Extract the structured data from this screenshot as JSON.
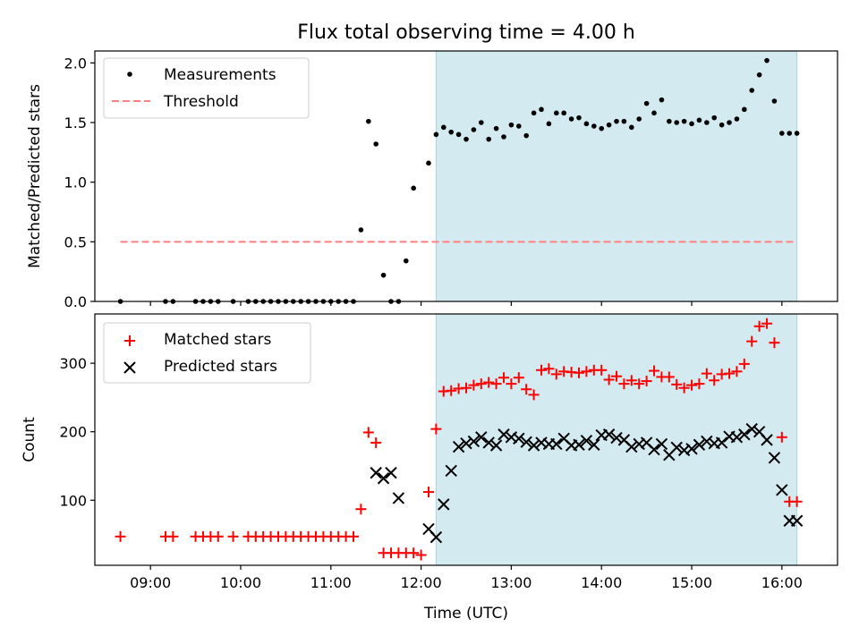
{
  "figure": {
    "title": "Flux total observing time = 4.00 h"
  },
  "chart_data": [
    {
      "type": "scatter",
      "ylabel": "Matched/Predicted stars",
      "xlabel": "",
      "ylim": [
        0,
        2.1
      ],
      "xlim": [
        "08:23",
        "16:37"
      ],
      "yticks": [
        0.0,
        0.5,
        1.0,
        1.5,
        2.0
      ],
      "ytick_labels": [
        "0.0",
        "0.5",
        "1.0",
        "1.5",
        "2.0"
      ],
      "shaded_span": {
        "from": "12:10",
        "to": "16:10",
        "color": "#d3eaf0"
      },
      "grid": false,
      "legend_position": "upper-left",
      "series": [
        {
          "name": "Measurements",
          "style": "dot",
          "color": "#000000",
          "x": [
            "08:40",
            "09:10",
            "09:15",
            "09:30",
            "09:35",
            "09:40",
            "09:45",
            "09:55",
            "10:05",
            "10:10",
            "10:15",
            "10:20",
            "10:25",
            "10:30",
            "10:35",
            "10:40",
            "10:45",
            "10:50",
            "10:55",
            "11:00",
            "11:05",
            "11:10",
            "11:15",
            "11:20",
            "11:25",
            "11:30",
            "11:35",
            "11:40",
            "11:45",
            "11:50",
            "11:55",
            "12:05",
            "12:10",
            "12:15",
            "12:20",
            "12:25",
            "12:30",
            "12:35",
            "12:40",
            "12:45",
            "12:50",
            "12:55",
            "13:00",
            "13:05",
            "13:10",
            "13:15",
            "13:20",
            "13:25",
            "13:30",
            "13:35",
            "13:40",
            "13:45",
            "13:50",
            "13:55",
            "14:00",
            "14:05",
            "14:10",
            "14:15",
            "14:20",
            "14:25",
            "14:30",
            "14:35",
            "14:40",
            "14:45",
            "14:50",
            "14:55",
            "15:00",
            "15:05",
            "15:10",
            "15:15",
            "15:20",
            "15:25",
            "15:30",
            "15:35",
            "15:40",
            "15:45",
            "15:50",
            "15:55",
            "16:00",
            "16:05",
            "16:10"
          ],
          "y": [
            0,
            0,
            0,
            0,
            0,
            0,
            0,
            0,
            0,
            0,
            0,
            0,
            0,
            0,
            0,
            0,
            0,
            0,
            0,
            0,
            0,
            0,
            0,
            0.6,
            1.51,
            1.32,
            0.22,
            0,
            0,
            0.34,
            0.95,
            1.16,
            1.4,
            1.46,
            1.42,
            1.4,
            1.36,
            1.44,
            1.5,
            1.36,
            1.45,
            1.38,
            1.48,
            1.47,
            1.39,
            1.58,
            1.61,
            1.49,
            1.58,
            1.58,
            1.53,
            1.54,
            1.49,
            1.47,
            1.45,
            1.48,
            1.51,
            1.51,
            1.46,
            1.53,
            1.66,
            1.58,
            1.69,
            1.51,
            1.5,
            1.51,
            1.49,
            1.52,
            1.5,
            1.54,
            1.48,
            1.5,
            1.53,
            1.61,
            1.77,
            1.9,
            2.02,
            1.68,
            1.41,
            1.41,
            1.41
          ]
        },
        {
          "name": "Threshold",
          "style": "dashed-line",
          "color": "#ff7f7f",
          "x": [
            "08:40",
            "16:10"
          ],
          "y": [
            0.5,
            0.5
          ]
        }
      ]
    },
    {
      "type": "scatter",
      "ylabel": "Count",
      "xlabel": "Time (UTC)",
      "ylim": [
        5,
        372
      ],
      "xlim": [
        "08:23",
        "16:37"
      ],
      "yticks": [
        100,
        200,
        300
      ],
      "ytick_labels": [
        "100",
        "200",
        "300"
      ],
      "xticks": [
        "09:00",
        "10:00",
        "11:00",
        "12:00",
        "13:00",
        "14:00",
        "15:00",
        "16:00"
      ],
      "shaded_span": {
        "from": "12:10",
        "to": "16:10",
        "color": "#d3eaf0"
      },
      "grid": false,
      "legend_position": "upper-left",
      "series": [
        {
          "name": "Matched stars",
          "style": "plus",
          "color": "#ff0000",
          "x": [
            "08:40",
            "09:10",
            "09:15",
            "09:30",
            "09:35",
            "09:40",
            "09:45",
            "09:55",
            "10:05",
            "10:10",
            "10:15",
            "10:20",
            "10:25",
            "10:30",
            "10:35",
            "10:40",
            "10:45",
            "10:50",
            "10:55",
            "11:00",
            "11:05",
            "11:10",
            "11:15",
            "11:20",
            "11:25",
            "11:30",
            "11:35",
            "11:40",
            "11:45",
            "11:50",
            "11:55",
            "12:00",
            "12:05",
            "12:10",
            "12:15",
            "12:20",
            "12:25",
            "12:30",
            "12:35",
            "12:40",
            "12:45",
            "12:50",
            "12:55",
            "13:00",
            "13:05",
            "13:10",
            "13:15",
            "13:20",
            "13:25",
            "13:30",
            "13:35",
            "13:40",
            "13:45",
            "13:50",
            "13:55",
            "14:00",
            "14:05",
            "14:10",
            "14:15",
            "14:20",
            "14:25",
            "14:30",
            "14:35",
            "14:40",
            "14:45",
            "14:50",
            "14:55",
            "15:00",
            "15:05",
            "15:10",
            "15:15",
            "15:20",
            "15:25",
            "15:30",
            "15:35",
            "15:40",
            "15:45",
            "15:50",
            "15:55",
            "16:00",
            "16:05",
            "16:10"
          ],
          "y": [
            47,
            47,
            47,
            47,
            47,
            47,
            47,
            47,
            47,
            47,
            47,
            47,
            47,
            47,
            47,
            47,
            47,
            47,
            47,
            47,
            47,
            47,
            47,
            87,
            199,
            184,
            23,
            23,
            23,
            23,
            23,
            20,
            112,
            204,
            259,
            260,
            263,
            264,
            268,
            270,
            272,
            270,
            279,
            270,
            279,
            262,
            254,
            290,
            292,
            284,
            288,
            287,
            286,
            288,
            290,
            290,
            276,
            281,
            270,
            275,
            270,
            274,
            289,
            280,
            280,
            269,
            264,
            268,
            270,
            285,
            275,
            284,
            285,
            288,
            299,
            332,
            354,
            358,
            330,
            192,
            98,
            98
          ]
        },
        {
          "name": "Predicted stars",
          "style": "x",
          "color": "#000000",
          "x": [
            "11:30",
            "11:35",
            "11:40",
            "11:45",
            "12:05",
            "12:10",
            "12:15",
            "12:20",
            "12:25",
            "12:30",
            "12:35",
            "12:40",
            "12:45",
            "12:50",
            "12:55",
            "13:00",
            "13:05",
            "13:10",
            "13:15",
            "13:20",
            "13:25",
            "13:30",
            "13:35",
            "13:40",
            "13:45",
            "13:50",
            "13:55",
            "14:00",
            "14:05",
            "14:10",
            "14:15",
            "14:20",
            "14:25",
            "14:30",
            "14:35",
            "14:40",
            "14:45",
            "14:50",
            "14:55",
            "15:00",
            "15:05",
            "15:10",
            "15:15",
            "15:20",
            "15:25",
            "15:30",
            "15:35",
            "15:40",
            "15:45",
            "15:50",
            "15:55",
            "16:00",
            "16:05",
            "16:10"
          ],
          "y": [
            140,
            132,
            140,
            103,
            58,
            46,
            94,
            143,
            178,
            183,
            186,
            192,
            184,
            180,
            196,
            192,
            190,
            185,
            180,
            184,
            182,
            182,
            190,
            180,
            181,
            187,
            181,
            195,
            196,
            191,
            188,
            178,
            182,
            184,
            174,
            182,
            166,
            177,
            173,
            175,
            181,
            186,
            183,
            184,
            193,
            192,
            196,
            204,
            200,
            188,
            162,
            115,
            70,
            70
          ]
        }
      ]
    }
  ]
}
